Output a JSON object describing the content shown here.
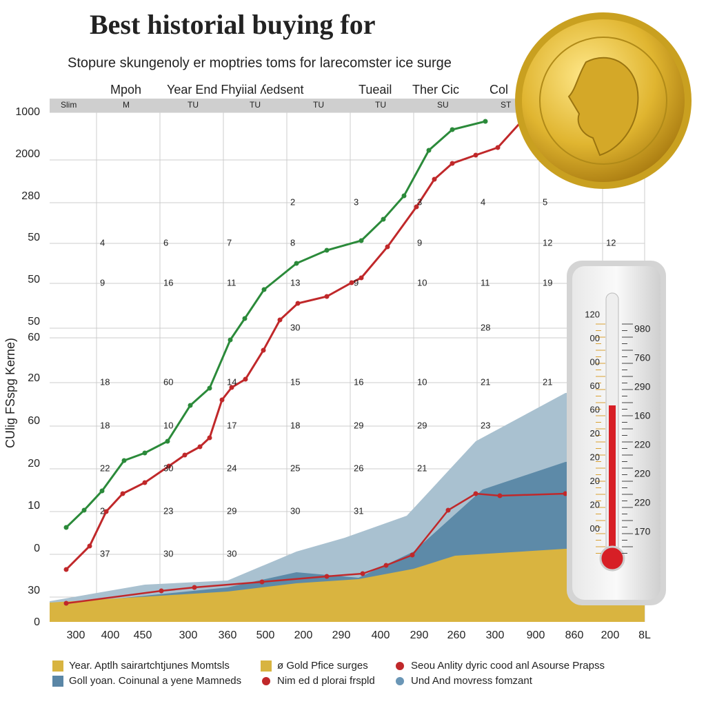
{
  "header": {
    "title": "Best historial buying for",
    "subtitle": "Stopure skungenoly er moptries toms for larecomster ice surge"
  },
  "table": {
    "column_headers": [
      "Mpoh",
      "Year End Fhyiial ʎedsent",
      "Tueail",
      "Ther Cic",
      "Col"
    ],
    "header_row": [
      "Slim",
      "M",
      "TU",
      "TU",
      "TU",
      "TU",
      "SU",
      "ST"
    ],
    "rows": [
      [
        null,
        null,
        null,
        "2",
        "3",
        "3",
        "4",
        "5",
        null
      ],
      [
        "4",
        "6",
        "7",
        "8",
        null,
        "9",
        null,
        "12",
        "12"
      ],
      [
        "9",
        "16",
        "11",
        "13",
        "9",
        "10",
        "11",
        "19",
        null
      ],
      [
        null,
        null,
        null,
        "30",
        null,
        null,
        "28",
        null,
        null
      ],
      [
        "18",
        "60",
        "14",
        "15",
        "16",
        "10",
        "21",
        "21",
        null
      ],
      [
        "18",
        "10",
        "17",
        "18",
        "29",
        "29",
        "23",
        null,
        null
      ],
      [
        "22",
        "30",
        "24",
        "25",
        "26",
        "21",
        null,
        null,
        null
      ],
      [
        "2",
        "23",
        "29",
        "30",
        "31",
        null,
        null,
        null,
        null
      ],
      [
        "37",
        "30",
        "30",
        null,
        null,
        null,
        null,
        null,
        null
      ]
    ]
  },
  "axis": {
    "y_title": "CUlig FSspg Kerne)",
    "y_labels": [
      "1000",
      "2000",
      "280",
      "50",
      "50",
      "50",
      "60",
      "20",
      "60",
      "20",
      "10",
      "0",
      "30",
      "0"
    ],
    "x_labels": [
      "300",
      "400",
      "450",
      "300",
      "360",
      "500",
      "200",
      "290",
      "400",
      "290",
      "260",
      "300",
      "900",
      "860",
      "200",
      "8L"
    ]
  },
  "thermometer": {
    "left_labels": [
      "120",
      "00",
      "00",
      "60",
      "60",
      "20",
      "20",
      "20",
      "20",
      "00"
    ],
    "right_labels": [
      "980",
      "760",
      "290",
      "160",
      "220",
      "220",
      "220",
      "170"
    ]
  },
  "legend": [
    {
      "label": "Year. Aptlh sairartchtjunes Momtsls",
      "color": "#d8b440",
      "shape": "square"
    },
    {
      "label": "ø Gold Pfice surges",
      "color": "#d8b440",
      "shape": "square"
    },
    {
      "label": "Seou Anlity dyric cood anl Asourse Prapss",
      "color": "#c0282a",
      "shape": "dot"
    },
    {
      "label": "Goll yoan. Coinunal a yene Mamneds",
      "color": "#5a86a6",
      "shape": "square"
    },
    {
      "label": "Nim ed d plorai frspld",
      "color": "#c0282a",
      "shape": "dot"
    },
    {
      "label": "Und And movress fomzant",
      "color": "#6a96b6",
      "shape": "dot"
    }
  ]
}
